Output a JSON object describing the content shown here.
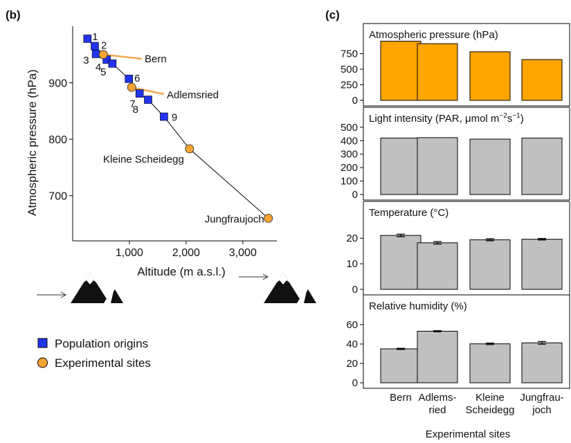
{
  "panel_b": {
    "label": "(b)",
    "xlabel": "Altitude (m a.s.l.)",
    "ylabel": "Atmospheric pressure (hPa)",
    "x_ticks": [
      {
        "v": 1000,
        "label": "1,000"
      },
      {
        "v": 2000,
        "label": "2,000"
      },
      {
        "v": 3000,
        "label": "3,000"
      }
    ],
    "y_ticks": [
      {
        "v": 700,
        "label": "700"
      },
      {
        "v": 800,
        "label": "800"
      },
      {
        "v": 900,
        "label": "900"
      }
    ],
    "legend": {
      "origins": "Population origins",
      "sites": "Experimental sites"
    },
    "colors": {
      "origins": "#2233ee",
      "sites": "#f5a433",
      "callout": "#f0a850",
      "line": "#000000"
    }
  },
  "panel_c": {
    "label": "(c)",
    "xlabel": "Experimental sites",
    "category_labels": [
      [
        "Bern"
      ],
      [
        "Adlems-",
        "ried"
      ],
      [
        "Kleine",
        "Scheidegg"
      ],
      [
        "Jungfrau-",
        "joch"
      ]
    ],
    "colors": {
      "pressure": "#ffa500",
      "other": "#c0c0c0"
    }
  },
  "chart_data": [
    {
      "type": "scatter",
      "panel": "(b)",
      "xlabel": "Altitude (m a.s.l.)",
      "ylabel": "Atmospheric pressure (hPa)",
      "xlim": [
        0,
        3600
      ],
      "ylim": [
        620,
        1000
      ],
      "grid": false,
      "legend_placement": "bottom-left",
      "series": [
        {
          "name": "Population origins",
          "marker": "square",
          "points": [
            {
              "label": "1",
              "x": 260,
              "y": 978
            },
            {
              "label": "2",
              "x": 390,
              "y": 965
            },
            {
              "label": "3",
              "x": 410,
              "y": 951
            },
            {
              "label": "4",
              "x": 600,
              "y": 941
            },
            {
              "label": "5",
              "x": 700,
              "y": 934
            },
            {
              "label": "6",
              "x": 990,
              "y": 907
            },
            {
              "label": "7",
              "x": 1180,
              "y": 881
            },
            {
              "label": "8",
              "x": 1330,
              "y": 870
            },
            {
              "label": "9",
              "x": 1610,
              "y": 840
            }
          ]
        },
        {
          "name": "Experimental sites",
          "marker": "circle",
          "points": [
            {
              "label": "Bern",
              "x": 540,
              "y": 950
            },
            {
              "label": "Adlemsried",
              "x": 1040,
              "y": 892
            },
            {
              "label": "Kleine Scheidegg",
              "x": 2060,
              "y": 783
            },
            {
              "label": "Jungfraujoch",
              "x": 3450,
              "y": 660
            }
          ]
        }
      ]
    },
    {
      "type": "bar",
      "panel": "(c)",
      "title": "Atmospheric pressure (hPa)",
      "categories": [
        "Bern",
        "Adlems-ried",
        "Kleine Scheidegg",
        "Jungfrau-joch"
      ],
      "values": [
        950,
        910,
        780,
        655
      ],
      "ylim": [
        0,
        1000
      ],
      "y_ticks": [
        0,
        250,
        500,
        750
      ]
    },
    {
      "type": "bar",
      "panel": "(c)",
      "title": "Light intensity (PAR, μmol m⁻²s⁻¹)",
      "categories": [
        "Bern",
        "Adlems-ried",
        "Kleine Scheidegg",
        "Jungfrau-joch"
      ],
      "values": [
        420,
        423,
        412,
        420
      ],
      "ylim": [
        0,
        520
      ],
      "y_ticks": [
        0,
        100,
        200,
        300,
        400,
        500
      ]
    },
    {
      "type": "bar",
      "panel": "(c)",
      "title": "Temperature (°C)",
      "categories": [
        "Bern",
        "Adlems-ried",
        "Kleine Scheidegg",
        "Jungfrau-joch"
      ],
      "values": [
        21.1,
        18.2,
        19.4,
        19.6
      ],
      "errors": [
        0.5,
        0.5,
        0.4,
        0.3
      ],
      "ylim": [
        0,
        26
      ],
      "y_ticks": [
        0,
        10,
        20
      ]
    },
    {
      "type": "bar",
      "panel": "(c)",
      "title": "Relative humidity (%)",
      "categories": [
        "Bern",
        "Adlems-ried",
        "Kleine Scheidegg",
        "Jungfrau-joch"
      ],
      "values": [
        35.0,
        53.2,
        40.2,
        41.2
      ],
      "errors": [
        0.6,
        0.6,
        0.8,
        1.4
      ],
      "ylim": [
        0,
        70
      ],
      "y_ticks": [
        0,
        20,
        40,
        60
      ]
    }
  ]
}
